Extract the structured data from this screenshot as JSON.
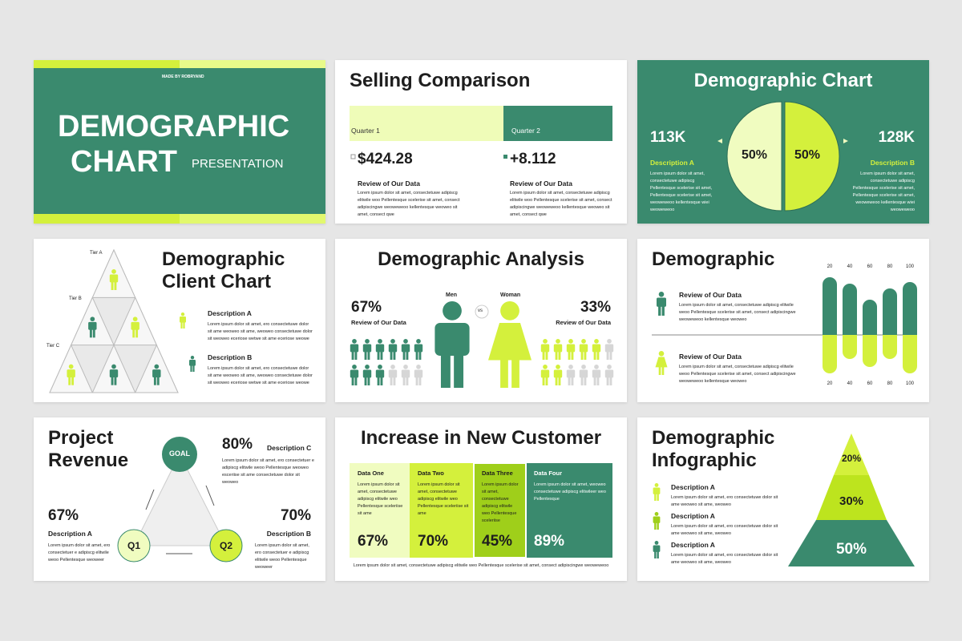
{
  "slides": [
    {
      "brand": "MADE BY ROBRYAND",
      "title_lines": [
        "DEMOGRAPHIC",
        "CHART"
      ],
      "subtitle": "PRESENTATION"
    },
    {
      "title": "Selling Comparison",
      "items": [
        {
          "label": "Quarter 1",
          "value": "$424.28",
          "heading": "Review of Our Data",
          "text": "Lorem ipsum dolor sit amet, consectetuwe adipiscg elitwile woo Pellentesque scelerise sit amet, consect adipiscingwe weoweweoo kellentesque weoweo sit amet, consect qwe"
        },
        {
          "label": "Quarter 2",
          "value": "+8.112",
          "heading": "Review of Our Data",
          "text": "Lorem ipsum dolor sit amet, consectetuwe adipiscg elitwile woo Pellentesque scelerise sit amet, consect adipiscingwe weoweweoo kellentesque weoweo sit amet, consect qwe"
        }
      ]
    },
    {
      "title": "Demographic Chart",
      "pie": [
        "50%",
        "50%"
      ],
      "items": [
        {
          "value": "113K",
          "label": "Description A",
          "text": "Lorem ipsum dolor sit amet, consectetuwe adipiscg Pellentesque scelerise sit amet, Pellentesque scelerise sit amet, weoweweoo kellentesque wiei weoweweoo"
        },
        {
          "value": "128K",
          "label": "Description B",
          "text": "Lorem ipsum dolor sit amet, consectetuwe adipiscg Pellentesque scelerise sit amet, Pellentesque scelerise sit amet, weoweweoo kellentesque wiei weoweweoo"
        }
      ]
    },
    {
      "title_lines": [
        "Demographic",
        "Client Chart"
      ],
      "tiers": [
        "Tier A",
        "Tier B",
        "Tier C"
      ],
      "items": [
        {
          "label": "Description A",
          "text": "Lorem ipsum dolor sit amet, ero consectetuwe dolor sit ame weoweo sit ame, weoweo consectetuwe dolor sit weoweo eceriose wetwe sit ame eceriose weowe"
        },
        {
          "label": "Description B",
          "text": "Lorem ipsum dolor sit amet, ero consectetuwe dolor sit ame weoweo sit ame, weoweo consectetuwe dolor sit weoweo eceriose wetwe sit ame eceriose weowe"
        }
      ]
    },
    {
      "title": "Demographic Analysis",
      "men": "Men",
      "women": "Woman",
      "vs": "vs",
      "items": [
        {
          "value": "67%",
          "label": "Review of Our Data"
        },
        {
          "value": "33%",
          "label": "Review of Our Data"
        }
      ]
    },
    {
      "title": "Demographic",
      "ticks_top": [
        "20",
        "40",
        "60",
        "80",
        "100"
      ],
      "ticks_bottom": [
        "20",
        "40",
        "60",
        "80",
        "100"
      ],
      "items": [
        {
          "heading": "Review of Our Data",
          "text": "Lorem ipsum dolor sit amet, consectetuwe adipiscg elitwile weoo Pellentesque scelerise sit amet, consect adipiscingwe weoweweoo kellentesque weoweo"
        },
        {
          "heading": "Review of Our Data",
          "text": "Lorem ipsum dolor sit amet, consectetuwe adipiscg elitwile weoo Pellentesque scelerise sit amet, consect adipiscingwe weoweweoo kellentesque weoweo"
        }
      ]
    },
    {
      "title_lines": [
        "Project",
        "Revenue"
      ],
      "goal": "GOAL",
      "q1": "Q1",
      "q2": "Q2",
      "items": [
        {
          "value": "80%",
          "label": "Description C",
          "text": "Lorem ipsum dolor sit amet, ero consectetuer e adipiscg elitwile weoo Pellentesque weoweo esceriise sit ame consectetuwe dolor sit weoweo"
        },
        {
          "value": "67%",
          "label": "Description A",
          "text": "Lorem ipsum dolor sit amet, ero consectetuer e adipiscg elitwile weoo Pellentesque weoweer"
        },
        {
          "value": "70%",
          "label": "Description B",
          "text": "Lorem ipsum dolor sit amet, ero consectetuer e adipiscg elitwile weoo Pellentesque weoweer"
        }
      ]
    },
    {
      "title": "Increase in New Customer",
      "columns": [
        {
          "name": "Data One",
          "text": "Lorem ipsum dolor sit amet, consectetuwe adipiscg elitwile weo Pellentesque sceleriise sit ame",
          "value": "67%"
        },
        {
          "name": "Data Two",
          "text": "Lorem ipsum dolor sit amet, consectetuwe adipiscg elitwile weo Pellentesque sceleriise sit ame",
          "value": "70%"
        },
        {
          "name": "Data Three",
          "text": "Lorem ipsum dolor sit amet, consectetuwe adipiscg elitwile weo Pellentesque sceleriise",
          "value": "45%"
        },
        {
          "name": "Data Four",
          "text": "Lorem ipsum dolor sit amet, weoweo consectetuwe adipiscg elitwileer weo Pellentesque",
          "value": "89%"
        }
      ],
      "footer": "Lorem ipsum dolor sit amet, consectetuwe adipiscg elitwile weo Pellentesque scelerise sit amet, consect adipiscingwe weoweweoo"
    },
    {
      "title_lines": [
        "Demographic",
        "Infographic"
      ],
      "pyramid": [
        "20%",
        "30%",
        "50%"
      ],
      "items": [
        {
          "label": "Description A",
          "text": "Lorem ipsum dolor sit amet, ero consectetuwe dolor sit ame weoweo sit ame, weoweo"
        },
        {
          "label": "Description A",
          "text": "Lorem ipsum dolor sit amet, ero consectetuwe dolor sit ame weoweo sit ame, weoweo"
        },
        {
          "label": "Description A",
          "text": "Lorem ipsum dolor sit amet, ero consectetuwe dolor sit ame weoweo sit ame, weoweo"
        }
      ]
    }
  ]
}
